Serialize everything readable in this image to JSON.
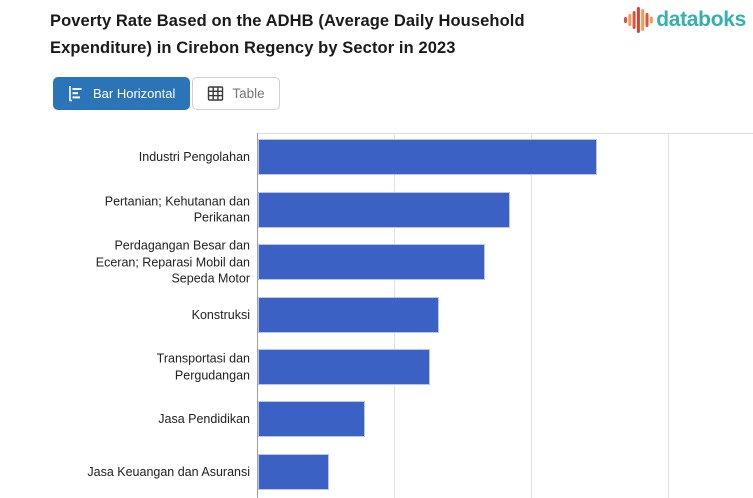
{
  "header": {
    "title_line1": "Poverty Rate Based on the ADHB (Average Daily Household",
    "title_line2": "Expenditure) in Cirebon Regency by Sector in 2023",
    "logo_text": "databoks"
  },
  "toolbar": {
    "bar_horizontal_label": "Bar Horizontal",
    "table_label": "Table"
  },
  "icons": {
    "logo": "waveform-bars-icon",
    "bar_horizontal": "horizontal-bar-chart-icon",
    "table": "table-grid-icon"
  },
  "chart_data": {
    "type": "bar",
    "orientation": "horizontal",
    "title": "Poverty Rate Based on the ADHB (Average Daily Household Expenditure) in Cirebon Regency by Sector in 2023",
    "categories": [
      "Industri Pengolahan",
      "Pertanian; Kehutanan dan Perikanan",
      "Perdagangan Besar dan Eceran; Reparasi Mobil dan Sepeda Motor",
      "Konstruksi",
      "Transportasi dan Pergudangan",
      "Jasa Pendidikan",
      "Jasa Keuangan dan Asuransi"
    ],
    "category_label_lines": [
      [
        "Industri Pengolahan"
      ],
      [
        "Pertanian; Kehutanan dan",
        "Perikanan"
      ],
      [
        "Perdagangan Besar dan",
        "Eceran; Reparasi Mobil dan",
        "Sepeda Motor"
      ],
      [
        "Konstruksi"
      ],
      [
        "Transportasi dan",
        "Pergudangan"
      ],
      [
        "Jasa Pendidikan"
      ],
      [
        "Jasa Keuangan dan Asuransi"
      ]
    ],
    "values": [
      12.4,
      9.2,
      8.3,
      6.6,
      6.3,
      3.9,
      2.6
    ],
    "xlabel": "",
    "ylabel": "",
    "xlim": [
      0,
      18.1
    ],
    "gridline_values": [
      5,
      10,
      15
    ],
    "value_axis_labels_visible": false,
    "grid": true,
    "legend": "none",
    "bar_color": "#3b61c4"
  },
  "colors": {
    "bar": "#3b61c4",
    "bar_border": "#b8c6ef",
    "active_button_bg": "#2b74b8",
    "active_button_text": "#ffffff",
    "inactive_button_text": "#757575",
    "inactive_button_border": "#cfcfcf",
    "logo_teal": "#34b1a9",
    "logo_red": "#e2503c",
    "logo_deep_red": "#d8402f",
    "logo_orange": "#f59b50",
    "axis_line": "#9e9e9e",
    "gridline": "#e2e2e2",
    "title_text": "#1a1a1a",
    "label_text": "#212121"
  }
}
